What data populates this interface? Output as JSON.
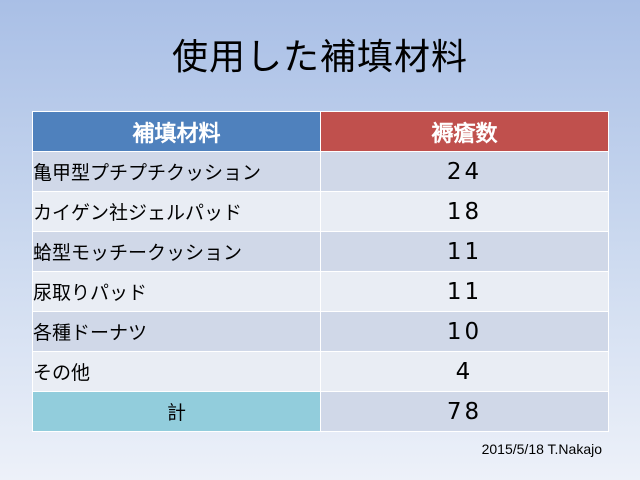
{
  "slide": {
    "title": "使用した補填材料",
    "table": {
      "headers": {
        "material": "補填材料",
        "count": "褥瘡数"
      },
      "rows": [
        {
          "material": "亀甲型プチプチクッション",
          "count": "24"
        },
        {
          "material": "カイゲン社ジェルパッド",
          "count": "18"
        },
        {
          "material": "蛤型モッチークッション",
          "count": "11"
        },
        {
          "material": "尿取りパッド",
          "count": "11"
        },
        {
          "material": "各種ドーナツ",
          "count": "10"
        },
        {
          "material": "その他",
          "count": "4"
        }
      ],
      "total": {
        "label": "計",
        "value": "78"
      }
    },
    "footer": "2015/5/18 T.Nakajo"
  },
  "colors": {
    "header_material": "#4f81bd",
    "header_count": "#c0504d",
    "total_label": "#92cddc",
    "row_band_dark": "#d0d8e8",
    "row_band_light": "#e9edf4"
  }
}
